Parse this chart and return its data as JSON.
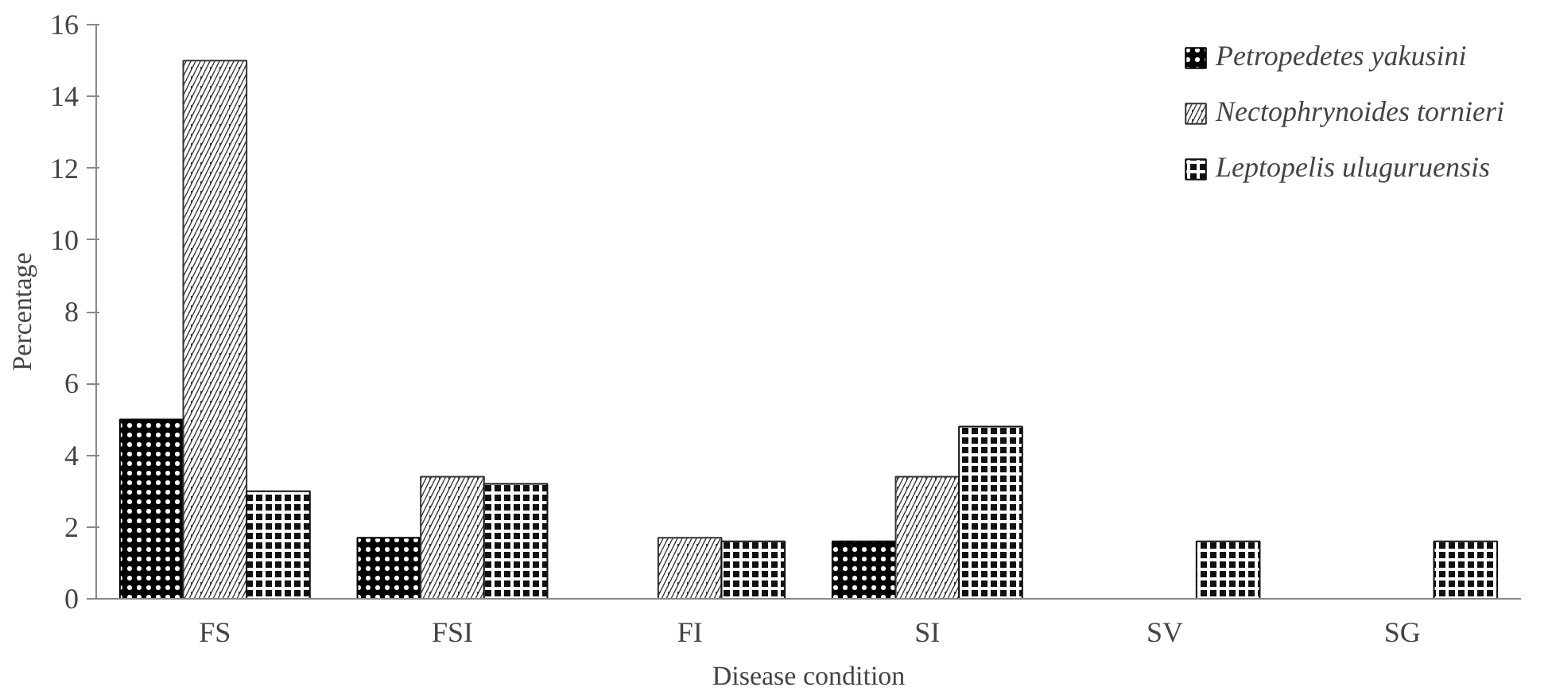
{
  "chart_data": {
    "type": "bar",
    "xlabel": "Disease condition",
    "ylabel": "Percentage",
    "categories": [
      "FS",
      "FSI",
      "FI",
      "SI",
      "SV",
      "SG"
    ],
    "series": [
      {
        "name": "Petropedetes yakusini",
        "color": "#000000",
        "values": [
          5,
          1.7,
          0,
          1.6,
          0,
          0
        ]
      },
      {
        "name": "Nectophrynoides tornieri",
        "color": "#333333",
        "values": [
          15,
          3.4,
          1.7,
          3.4,
          0,
          0
        ]
      },
      {
        "name": "Leptopelis uluguruensis",
        "color": "#111111",
        "values": [
          3,
          3.2,
          1.6,
          4.8,
          1.6,
          1.6
        ]
      }
    ],
    "ylim": [
      0,
      16
    ],
    "yticks": [
      0,
      2,
      4,
      6,
      8,
      10,
      12,
      14,
      16
    ],
    "grid": false,
    "legend": "top right"
  }
}
